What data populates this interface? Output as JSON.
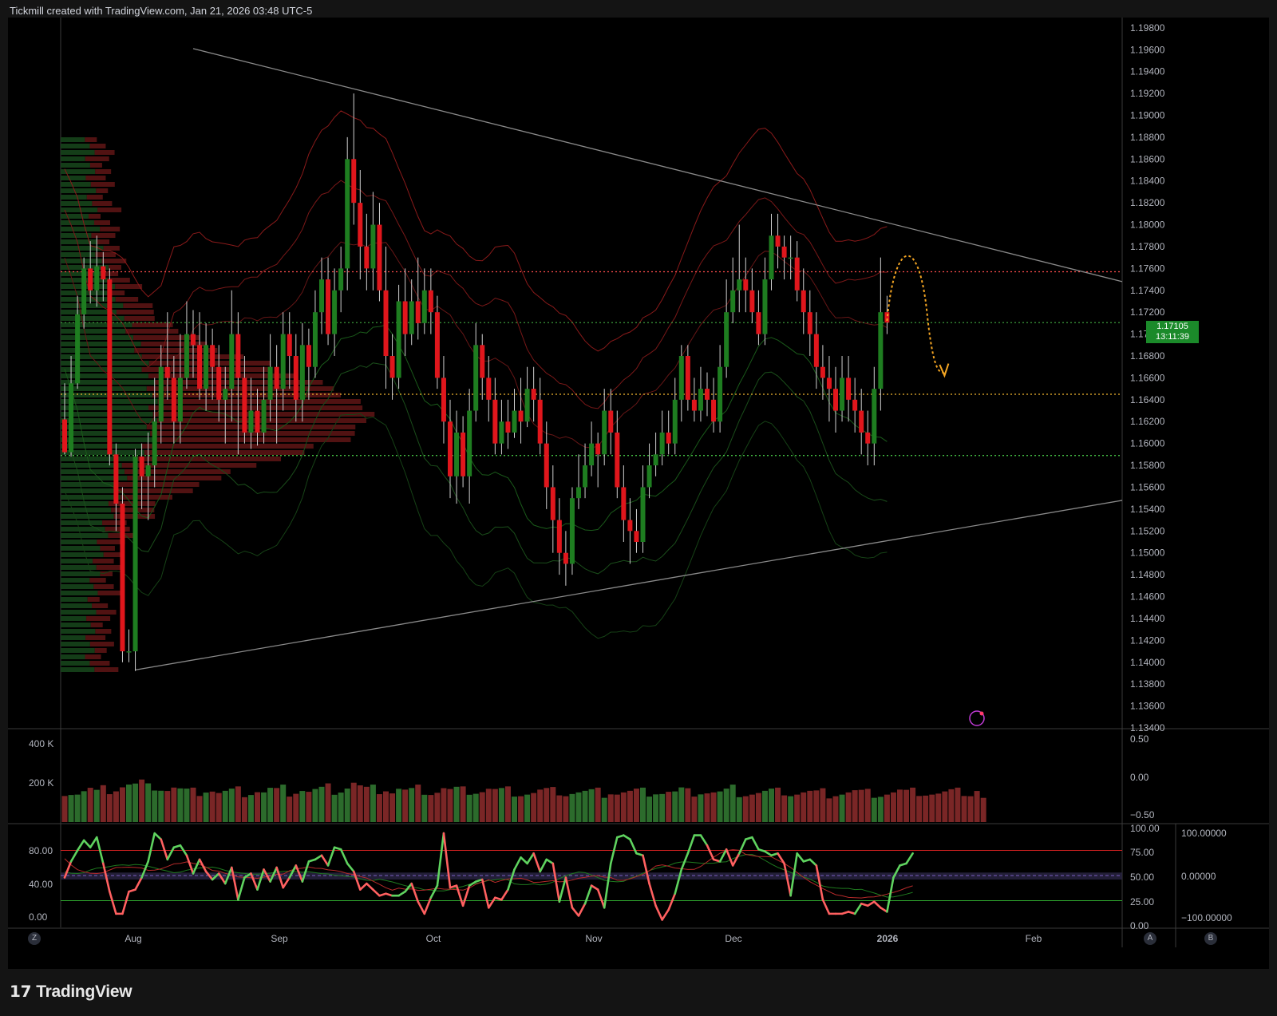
{
  "header": {
    "caption": "Tickmill created with TradingView.com, Jan 21, 2026 03:48 UTC-5"
  },
  "brand": {
    "name": "TradingView"
  },
  "last_price": {
    "price": "1.17105",
    "countdown": "13:11:39"
  },
  "corner_buttons": {
    "left": "Z",
    "right_a": "A",
    "right_b": "B"
  },
  "colors": {
    "up": "#1e7d20",
    "down": "#e0161c",
    "background": "#000000",
    "trend_lines": "#8a8a8a",
    "resistance_dotted": "#ff4d4d",
    "support_dotted": "#4cd44c",
    "poc_dotted": "#f0b530",
    "projection": "#f5a623"
  },
  "chart_data": [
    {
      "type": "candlestick",
      "title": "",
      "y_ticks": [
        "1.19800",
        "1.19600",
        "1.19400",
        "1.19200",
        "1.19000",
        "1.18800",
        "1.18600",
        "1.18400",
        "1.18200",
        "1.18000",
        "1.17800",
        "1.17600",
        "1.17400",
        "1.17200",
        "1.17000",
        "1.16800",
        "1.16600",
        "1.16400",
        "1.16200",
        "1.16000",
        "1.15800",
        "1.15600",
        "1.15400",
        "1.15200",
        "1.15000",
        "1.14800",
        "1.14600",
        "1.14400",
        "1.14200",
        "1.14000",
        "1.13800",
        "1.13600",
        "1.13400"
      ],
      "x_ticks": [
        "Aug",
        "Sep",
        "Oct",
        "Nov",
        "Dec",
        "2026",
        "Feb"
      ],
      "ylim": [
        1.134,
        1.1985
      ],
      "horizontal_levels": [
        {
          "name": "resistance",
          "value": 1.1757
        },
        {
          "name": "last",
          "value": 1.17105
        },
        {
          "name": "poc",
          "value": 1.1645
        },
        {
          "name": "support",
          "value": 1.1589
        }
      ],
      "candles": [
        [
          1.1622,
          1.1592,
          1.1655,
          1.159
        ],
        [
          1.1592,
          1.1655,
          1.168,
          1.1588
        ],
        [
          1.1655,
          1.1718,
          1.1735,
          1.165
        ],
        [
          1.1718,
          1.176,
          1.177,
          1.1705
        ],
        [
          1.176,
          1.174,
          1.1785,
          1.1728
        ],
        [
          1.174,
          1.1762,
          1.179,
          1.1725
        ],
        [
          1.1762,
          1.175,
          1.1775,
          1.173
        ],
        [
          1.175,
          1.159,
          1.176,
          1.158
        ],
        [
          1.159,
          1.1545,
          1.16,
          1.152
        ],
        [
          1.1545,
          1.141,
          1.156,
          1.14
        ],
        [
          1.141,
          1.141,
          1.143,
          1.14
        ],
        [
          1.141,
          1.1588,
          1.1595,
          1.1392
        ],
        [
          1.1588,
          1.157,
          1.16,
          1.154
        ],
        [
          1.157,
          1.158,
          1.161,
          1.153
        ],
        [
          1.158,
          1.162,
          1.166,
          1.156
        ],
        [
          1.162,
          1.167,
          1.169,
          1.16
        ],
        [
          1.167,
          1.166,
          1.172,
          1.164
        ],
        [
          1.166,
          1.162,
          1.168,
          1.16
        ],
        [
          1.162,
          1.166,
          1.17,
          1.16
        ],
        [
          1.166,
          1.17,
          1.173,
          1.165
        ],
        [
          1.17,
          1.169,
          1.1722,
          1.166
        ],
        [
          1.169,
          1.165,
          1.172,
          1.164
        ],
        [
          1.165,
          1.169,
          1.171,
          1.163
        ],
        [
          1.169,
          1.167,
          1.1705,
          1.164
        ],
        [
          1.167,
          1.164,
          1.169,
          1.162
        ],
        [
          1.164,
          1.165,
          1.167,
          1.16
        ],
        [
          1.165,
          1.17,
          1.174,
          1.162
        ],
        [
          1.17,
          1.166,
          1.172,
          1.159
        ],
        [
          1.166,
          1.161,
          1.168,
          1.16
        ],
        [
          1.161,
          1.163,
          1.166,
          1.1595
        ],
        [
          1.163,
          1.161,
          1.165,
          1.1598
        ],
        [
          1.161,
          1.164,
          1.167,
          1.16
        ],
        [
          1.164,
          1.167,
          1.17,
          1.162
        ],
        [
          1.167,
          1.165,
          1.169,
          1.16
        ],
        [
          1.165,
          1.17,
          1.172,
          1.163
        ],
        [
          1.17,
          1.168,
          1.172,
          1.165
        ],
        [
          1.168,
          1.164,
          1.17,
          1.162
        ],
        [
          1.164,
          1.169,
          1.171,
          1.162
        ],
        [
          1.169,
          1.167,
          1.1705,
          1.164
        ],
        [
          1.167,
          1.172,
          1.174,
          1.166
        ],
        [
          1.172,
          1.175,
          1.177,
          1.17
        ],
        [
          1.175,
          1.17,
          1.177,
          1.169
        ],
        [
          1.17,
          1.174,
          1.176,
          1.168
        ],
        [
          1.174,
          1.176,
          1.178,
          1.172
        ],
        [
          1.176,
          1.186,
          1.188,
          1.174
        ],
        [
          1.186,
          1.182,
          1.192,
          1.18
        ],
        [
          1.182,
          1.178,
          1.185,
          1.175
        ],
        [
          1.178,
          1.176,
          1.181,
          1.174
        ],
        [
          1.176,
          1.18,
          1.183,
          1.174
        ],
        [
          1.18,
          1.174,
          1.182,
          1.173
        ],
        [
          1.174,
          1.168,
          1.178,
          1.165
        ],
        [
          1.168,
          1.166,
          1.17,
          1.164
        ],
        [
          1.166,
          1.173,
          1.1745,
          1.165
        ],
        [
          1.173,
          1.17,
          1.176,
          1.168
        ],
        [
          1.17,
          1.173,
          1.175,
          1.169
        ],
        [
          1.173,
          1.171,
          1.177,
          1.1695
        ],
        [
          1.171,
          1.174,
          1.176,
          1.17
        ],
        [
          1.174,
          1.172,
          1.176,
          1.17
        ],
        [
          1.172,
          1.166,
          1.1735,
          1.165
        ],
        [
          1.166,
          1.162,
          1.168,
          1.16
        ],
        [
          1.162,
          1.157,
          1.164,
          1.155
        ],
        [
          1.157,
          1.161,
          1.163,
          1.1545
        ],
        [
          1.161,
          1.157,
          1.1625,
          1.156
        ],
        [
          1.157,
          1.163,
          1.165,
          1.1545
        ],
        [
          1.163,
          1.169,
          1.171,
          1.162
        ],
        [
          1.169,
          1.166,
          1.17,
          1.164
        ],
        [
          1.166,
          1.164,
          1.168,
          1.162
        ],
        [
          1.164,
          1.16,
          1.166,
          1.159
        ],
        [
          1.16,
          1.162,
          1.164,
          1.159
        ],
        [
          1.162,
          1.161,
          1.164,
          1.1595
        ],
        [
          1.161,
          1.163,
          1.165,
          1.1605
        ],
        [
          1.163,
          1.162,
          1.166,
          1.16
        ],
        [
          1.162,
          1.165,
          1.167,
          1.1615
        ],
        [
          1.165,
          1.164,
          1.167,
          1.162
        ],
        [
          1.164,
          1.16,
          1.166,
          1.159
        ],
        [
          1.16,
          1.156,
          1.162,
          1.154
        ],
        [
          1.156,
          1.153,
          1.158,
          1.15
        ],
        [
          1.153,
          1.15,
          1.155,
          1.148
        ],
        [
          1.15,
          1.149,
          1.152,
          1.147
        ],
        [
          1.149,
          1.155,
          1.156,
          1.148
        ],
        [
          1.155,
          1.156,
          1.159,
          1.154
        ],
        [
          1.156,
          1.158,
          1.16,
          1.155
        ],
        [
          1.158,
          1.16,
          1.162,
          1.157
        ],
        [
          1.16,
          1.159,
          1.161,
          1.156
        ],
        [
          1.159,
          1.163,
          1.165,
          1.158
        ],
        [
          1.163,
          1.161,
          1.165,
          1.159
        ],
        [
          1.161,
          1.156,
          1.163,
          1.155
        ],
        [
          1.156,
          1.153,
          1.158,
          1.151
        ],
        [
          1.153,
          1.152,
          1.155,
          1.149
        ],
        [
          1.152,
          1.151,
          1.154,
          1.15
        ],
        [
          1.151,
          1.156,
          1.158,
          1.15
        ],
        [
          1.156,
          1.158,
          1.16,
          1.155
        ],
        [
          1.158,
          1.159,
          1.161,
          1.157
        ],
        [
          1.159,
          1.161,
          1.163,
          1.158
        ],
        [
          1.161,
          1.16,
          1.163,
          1.159
        ],
        [
          1.16,
          1.164,
          1.166,
          1.159
        ],
        [
          1.164,
          1.168,
          1.169,
          1.162
        ],
        [
          1.168,
          1.164,
          1.169,
          1.163
        ],
        [
          1.164,
          1.163,
          1.166,
          1.162
        ],
        [
          1.163,
          1.165,
          1.167,
          1.162
        ],
        [
          1.165,
          1.164,
          1.1665,
          1.1625
        ],
        [
          1.164,
          1.162,
          1.166,
          1.161
        ],
        [
          1.162,
          1.167,
          1.169,
          1.161
        ],
        [
          1.167,
          1.172,
          1.175,
          1.166
        ],
        [
          1.172,
          1.174,
          1.177,
          1.171
        ],
        [
          1.174,
          1.175,
          1.18,
          1.172
        ],
        [
          1.175,
          1.174,
          1.177,
          1.172
        ],
        [
          1.174,
          1.172,
          1.176,
          1.171
        ],
        [
          1.172,
          1.17,
          1.174,
          1.169
        ],
        [
          1.17,
          1.175,
          1.177,
          1.169
        ],
        [
          1.175,
          1.179,
          1.181,
          1.174
        ],
        [
          1.179,
          1.178,
          1.181,
          1.176
        ],
        [
          1.178,
          1.177,
          1.179,
          1.175
        ],
        [
          1.177,
          1.177,
          1.179,
          1.175
        ],
        [
          1.177,
          1.174,
          1.1785,
          1.173
        ],
        [
          1.174,
          1.172,
          1.176,
          1.17
        ],
        [
          1.172,
          1.17,
          1.174,
          1.168
        ],
        [
          1.17,
          1.167,
          1.172,
          1.165
        ],
        [
          1.167,
          1.166,
          1.169,
          1.164
        ],
        [
          1.166,
          1.165,
          1.168,
          1.162
        ],
        [
          1.165,
          1.163,
          1.167,
          1.161
        ],
        [
          1.163,
          1.166,
          1.168,
          1.162
        ],
        [
          1.166,
          1.164,
          1.168,
          1.162
        ],
        [
          1.164,
          1.163,
          1.166,
          1.161
        ],
        [
          1.163,
          1.161,
          1.165,
          1.159
        ],
        [
          1.161,
          1.16,
          1.163,
          1.158
        ],
        [
          1.16,
          1.165,
          1.167,
          1.158
        ],
        [
          1.165,
          1.172,
          1.177,
          1.163
        ],
        [
          1.172,
          1.17105,
          1.1735,
          1.17
        ]
      ],
      "overlays": [
        "short moving average",
        "long moving average",
        "upper bands",
        "lower bands",
        "volume profile"
      ],
      "projection": "dashed orange arc from last candle up to ~1.1775 then down to ~1.1665",
      "trend_lines": [
        "descending resistance from Aug high",
        "ascending support from Aug low"
      ]
    },
    {
      "type": "bar",
      "title": "Volume",
      "y_ticks_left": [
        "400 K",
        "200 K"
      ],
      "y_ticks_right": [
        "0.50",
        "0.00",
        "−0.50"
      ],
      "values": [
        215,
        210,
        200,
        215,
        230,
        200,
        225,
        230,
        240,
        260,
        270,
        265,
        285,
        240,
        260,
        245,
        230,
        245,
        225,
        210,
        205,
        215,
        230,
        225,
        200,
        205,
        210,
        215,
        205,
        210,
        220,
        205,
        230,
        215,
        230,
        210,
        220,
        230,
        210,
        220,
        225,
        240,
        225,
        230,
        250,
        285,
        250,
        225,
        230,
        230,
        240,
        210,
        235,
        215,
        215,
        230,
        225,
        210,
        215,
        240,
        220,
        225,
        215,
        225,
        220,
        220,
        235,
        220,
        215,
        215,
        210,
        200,
        200,
        200,
        215,
        215,
        210,
        220,
        200,
        205,
        205,
        205,
        205,
        205,
        200,
        215,
        200,
        205,
        205,
        210,
        205,
        210,
        215,
        205,
        210,
        200,
        220,
        200,
        210,
        215,
        210,
        205,
        200,
        210,
        230,
        205,
        200,
        200,
        200,
        205,
        210,
        205,
        220,
        200,
        200,
        205,
        205,
        195,
        200,
        195,
        200,
        200,
        205,
        210,
        200,
        195,
        200,
        195,
        200,
        205,
        215,
        200,
        205,
        215,
        205,
        200,
        195,
        200,
        205,
        205,
        215,
        200,
        230,
        160
      ],
      "colors_up_down": true
    },
    {
      "type": "line",
      "title": "Stochastic",
      "y_ticks_left": [
        "80.00",
        "40.00",
        "0.00"
      ],
      "y_ticks_right": [
        "100.00",
        "75.00",
        "50.00",
        "25.00",
        "0.00"
      ],
      "y_ticks_far_right": [
        "100.00000",
        "0.00000",
        "−100.00000"
      ],
      "levels": [
        80,
        50,
        20
      ],
      "series": [
        {
          "name": "",
          "values": [
            48,
            64,
            75,
            85,
            78,
            88,
            62,
            34,
            12,
            12,
            34,
            36,
            48,
            64,
            92,
            86,
            66,
            78,
            80,
            70,
            52,
            66,
            54,
            46,
            52,
            42,
            58,
            26,
            48,
            52,
            36,
            56,
            44,
            58,
            38,
            48,
            60,
            44,
            64,
            66,
            70,
            60,
            78,
            76,
            62,
            54,
            36,
            42,
            36,
            30,
            32,
            30,
            30,
            34,
            42,
            24,
            12,
            28,
            40,
            92,
            38,
            40,
            20,
            40,
            44,
            46,
            18,
            28,
            26,
            36,
            56,
            68,
            62,
            72,
            54,
            66,
            62,
            24,
            48,
            18,
            10,
            22,
            40,
            36,
            18,
            62,
            88,
            90,
            86,
            72,
            70,
            42,
            20,
            6,
            16,
            32,
            56,
            72,
            90,
            90,
            80,
            66,
            64,
            76,
            60,
            72,
            86,
            88,
            76,
            74,
            70,
            72,
            62,
            30,
            72,
            64,
            66,
            60,
            26,
            12,
            12,
            12,
            14,
            12,
            22,
            20,
            24,
            18,
            14,
            48,
            60,
            62,
            72
          ]
        }
      ]
    }
  ]
}
